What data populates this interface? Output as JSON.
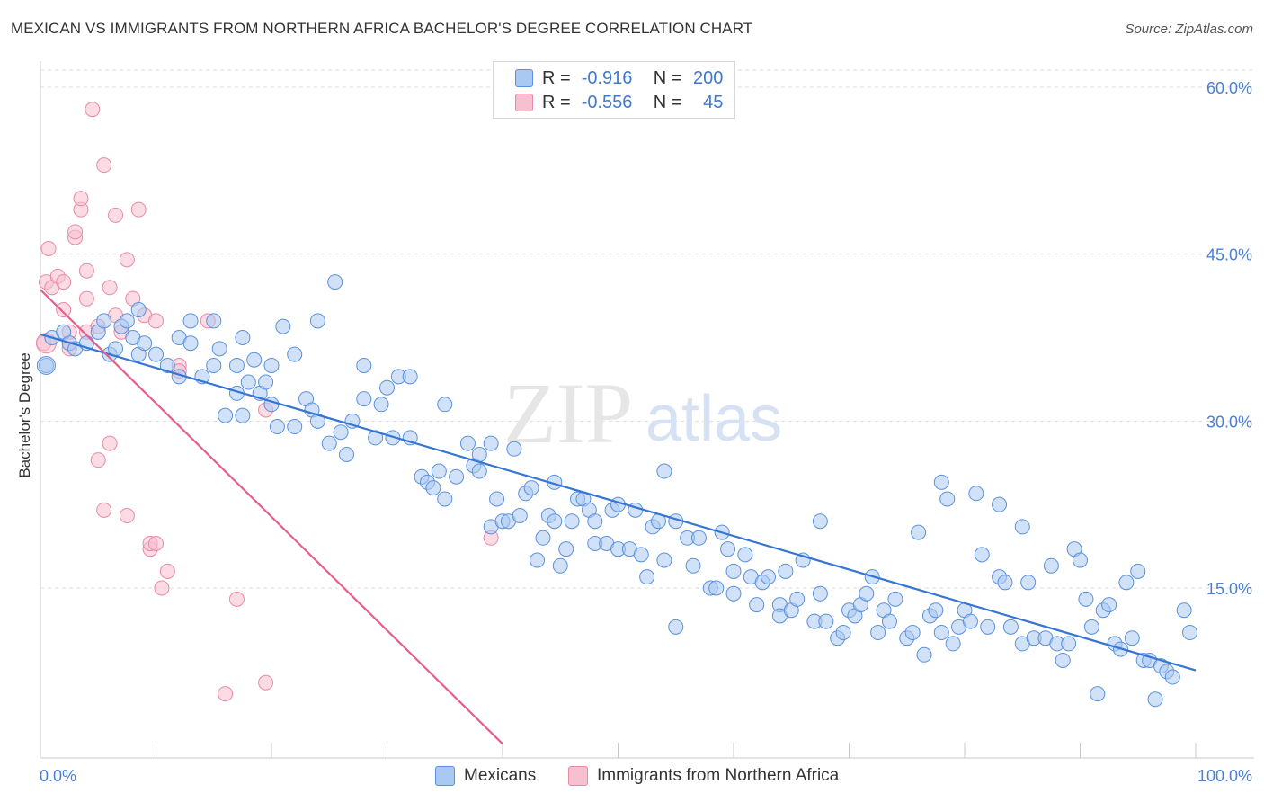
{
  "title": "MEXICAN VS IMMIGRANTS FROM NORTHERN AFRICA BACHELOR'S DEGREE CORRELATION CHART",
  "source": "Source: ZipAtlas.com",
  "watermark": {
    "zip": "ZIP",
    "atlas": "atlas"
  },
  "legend": {
    "row1": {
      "r_label": "R =",
      "r_value": "-0.916",
      "n_label": "N =",
      "n_value": "200"
    },
    "row2": {
      "r_label": "R =",
      "r_value": "-0.556",
      "n_label": "N =",
      "n_value": "45"
    }
  },
  "bottom_legend": {
    "series1": "Mexicans",
    "series2": "Immigrants from Northern Africa"
  },
  "colors": {
    "blue_fill": "#a9c8f2",
    "blue_stroke": "#5b92dd",
    "blue_line": "#3575d3",
    "pink_fill": "#f7c0d0",
    "pink_stroke": "#e88aa6",
    "pink_line": "#e4608a",
    "grid": "#dddddd",
    "axis_text": "#4a7fd4"
  },
  "chart_data": {
    "type": "scatter",
    "title": "MEXICAN VS IMMIGRANTS FROM NORTHERN AFRICA BACHELOR'S DEGREE CORRELATION CHART",
    "xlabel": "",
    "ylabel": "Bachelor's Degree",
    "xlim": [
      0,
      100
    ],
    "ylim": [
      0,
      63
    ],
    "x_tick_labels": [
      "0.0%",
      "100.0%"
    ],
    "y_ticks": [
      15,
      30,
      45,
      60
    ],
    "y_tick_labels": [
      "15.0%",
      "30.0%",
      "45.0%",
      "60.0%"
    ],
    "grid": true,
    "legend_placement": "top-center",
    "series": [
      {
        "name": "Mexicans",
        "color": "#5b92dd",
        "trend": {
          "x": [
            0,
            100
          ],
          "y": [
            37.8,
            7.6
          ]
        },
        "points": [
          [
            0.5,
            35
          ],
          [
            1,
            37.5
          ],
          [
            2,
            38
          ],
          [
            2.5,
            37
          ],
          [
            3,
            36.5
          ],
          [
            4,
            37
          ],
          [
            5,
            38
          ],
          [
            5.5,
            39
          ],
          [
            6,
            36
          ],
          [
            6.5,
            36.5
          ],
          [
            7,
            38.5
          ],
          [
            7.5,
            39
          ],
          [
            8,
            37.5
          ],
          [
            8.5,
            40
          ],
          [
            8.5,
            36
          ],
          [
            9,
            37
          ],
          [
            10,
            36
          ],
          [
            11,
            35
          ],
          [
            12,
            37.5
          ],
          [
            12,
            34
          ],
          [
            13,
            39
          ],
          [
            13,
            37
          ],
          [
            14,
            34
          ],
          [
            15,
            39
          ],
          [
            15,
            35
          ],
          [
            15.5,
            36.5
          ],
          [
            16,
            30.5
          ],
          [
            17,
            35
          ],
          [
            17,
            32.5
          ],
          [
            17.5,
            30.5
          ],
          [
            17.5,
            37.5
          ],
          [
            18,
            33.5
          ],
          [
            18.5,
            35.5
          ],
          [
            19,
            32.5
          ],
          [
            19.5,
            33.5
          ],
          [
            20,
            35
          ],
          [
            20,
            31.5
          ],
          [
            20.5,
            29.5
          ],
          [
            21,
            38.5
          ],
          [
            22,
            36
          ],
          [
            22,
            29.5
          ],
          [
            23,
            32
          ],
          [
            23.5,
            31
          ],
          [
            24,
            30
          ],
          [
            24,
            39
          ],
          [
            25,
            28
          ],
          [
            25.5,
            42.5
          ],
          [
            26,
            29
          ],
          [
            26.5,
            27
          ],
          [
            27,
            30
          ],
          [
            28,
            35
          ],
          [
            28,
            32
          ],
          [
            29,
            28.5
          ],
          [
            29.5,
            31.5
          ],
          [
            30,
            33
          ],
          [
            30.5,
            28.5
          ],
          [
            31,
            34
          ],
          [
            32,
            34
          ],
          [
            32,
            28.5
          ],
          [
            33,
            25
          ],
          [
            33.5,
            24.5
          ],
          [
            34,
            24
          ],
          [
            34.5,
            25.5
          ],
          [
            35,
            23
          ],
          [
            35,
            31.5
          ],
          [
            36,
            25
          ],
          [
            37,
            28
          ],
          [
            37.5,
            26
          ],
          [
            38,
            27
          ],
          [
            38,
            25.5
          ],
          [
            39,
            28
          ],
          [
            39,
            20.5
          ],
          [
            39.5,
            23
          ],
          [
            40,
            21
          ],
          [
            40.5,
            21
          ],
          [
            41,
            27.5
          ],
          [
            41.5,
            21.5
          ],
          [
            42,
            23.5
          ],
          [
            42.5,
            24
          ],
          [
            43,
            17.5
          ],
          [
            43.5,
            19.5
          ],
          [
            44,
            21.5
          ],
          [
            44.5,
            21
          ],
          [
            44.5,
            24.5
          ],
          [
            45,
            17
          ],
          [
            45.5,
            18.5
          ],
          [
            46,
            21
          ],
          [
            46.5,
            23
          ],
          [
            47,
            23
          ],
          [
            47.5,
            22
          ],
          [
            48,
            19
          ],
          [
            48,
            21
          ],
          [
            49,
            19
          ],
          [
            49.5,
            22
          ],
          [
            50,
            18.5
          ],
          [
            50,
            22.5
          ],
          [
            51,
            18.5
          ],
          [
            51.5,
            22
          ],
          [
            52,
            18
          ],
          [
            52.5,
            16
          ],
          [
            53,
            20.5
          ],
          [
            53.5,
            21
          ],
          [
            54,
            17.5
          ],
          [
            54,
            25.5
          ],
          [
            55,
            21
          ],
          [
            55,
            11.5
          ],
          [
            56,
            19.5
          ],
          [
            56.5,
            17
          ],
          [
            57,
            19.5
          ],
          [
            58,
            15
          ],
          [
            58.5,
            15
          ],
          [
            59,
            20
          ],
          [
            59.5,
            18.5
          ],
          [
            60,
            16.5
          ],
          [
            60,
            14.5
          ],
          [
            61,
            18
          ],
          [
            61.5,
            16
          ],
          [
            62,
            13.5
          ],
          [
            62.5,
            15.5
          ],
          [
            63,
            16
          ],
          [
            64,
            13.5
          ],
          [
            64,
            12.5
          ],
          [
            64.5,
            16.5
          ],
          [
            65,
            13
          ],
          [
            65.5,
            14
          ],
          [
            66,
            17.5
          ],
          [
            67,
            12
          ],
          [
            67.5,
            14.5
          ],
          [
            67.5,
            21
          ],
          [
            68,
            12
          ],
          [
            69,
            10.5
          ],
          [
            69.5,
            11
          ],
          [
            70,
            13
          ],
          [
            70.5,
            12.5
          ],
          [
            71,
            13.5
          ],
          [
            71.5,
            14.5
          ],
          [
            72,
            16
          ],
          [
            72.5,
            11
          ],
          [
            73,
            13
          ],
          [
            73.5,
            12
          ],
          [
            74,
            14
          ],
          [
            75,
            10.5
          ],
          [
            75.5,
            11
          ],
          [
            76,
            20
          ],
          [
            76.5,
            9
          ],
          [
            77,
            12.5
          ],
          [
            77.5,
            13
          ],
          [
            78,
            11
          ],
          [
            78,
            24.5
          ],
          [
            78.5,
            23
          ],
          [
            79,
            10
          ],
          [
            79.5,
            11.5
          ],
          [
            80,
            13
          ],
          [
            80.5,
            12
          ],
          [
            81,
            23.5
          ],
          [
            81.5,
            18
          ],
          [
            82,
            11.5
          ],
          [
            83,
            16
          ],
          [
            83,
            22.5
          ],
          [
            83.5,
            15.5
          ],
          [
            84,
            11.5
          ],
          [
            85,
            10
          ],
          [
            85,
            20.5
          ],
          [
            85.5,
            15.5
          ],
          [
            86,
            10.5
          ],
          [
            87,
            10.5
          ],
          [
            87.5,
            17
          ],
          [
            88,
            10
          ],
          [
            88.5,
            8.5
          ],
          [
            89,
            10
          ],
          [
            89.5,
            18.5
          ],
          [
            90,
            17.5
          ],
          [
            90.5,
            14
          ],
          [
            91,
            11.5
          ],
          [
            91.5,
            5.5
          ],
          [
            92,
            13
          ],
          [
            92.5,
            13.5
          ],
          [
            93,
            10
          ],
          [
            93.5,
            9.5
          ],
          [
            94,
            15.5
          ],
          [
            94.5,
            10.5
          ],
          [
            95,
            16.5
          ],
          [
            95.5,
            8.5
          ],
          [
            96,
            8.5
          ],
          [
            96.5,
            5
          ],
          [
            97,
            8
          ],
          [
            97.5,
            7.5
          ],
          [
            98,
            7
          ],
          [
            99,
            13
          ],
          [
            99.5,
            11
          ]
        ]
      },
      {
        "name": "Immigrants from Northern Africa",
        "color": "#e88aa6",
        "trend": {
          "x": [
            0,
            40
          ],
          "y": [
            41.8,
            1
          ]
        },
        "points": [
          [
            0.3,
            37
          ],
          [
            0.5,
            42.5
          ],
          [
            0.7,
            45.5
          ],
          [
            1,
            42
          ],
          [
            1.5,
            43
          ],
          [
            2,
            40
          ],
          [
            2,
            42.5
          ],
          [
            2.5,
            38
          ],
          [
            2.5,
            36.5
          ],
          [
            3,
            46.5
          ],
          [
            3,
            47
          ],
          [
            3.5,
            49
          ],
          [
            3.5,
            50
          ],
          [
            4,
            38
          ],
          [
            4,
            41
          ],
          [
            4,
            43.5
          ],
          [
            4.5,
            58
          ],
          [
            5,
            38.5
          ],
          [
            5,
            26.5
          ],
          [
            5.5,
            53
          ],
          [
            5.5,
            22
          ],
          [
            6,
            42
          ],
          [
            6,
            28
          ],
          [
            6.5,
            48.5
          ],
          [
            6.5,
            39.5
          ],
          [
            7,
            38
          ],
          [
            7.5,
            44.5
          ],
          [
            7.5,
            21.5
          ],
          [
            8,
            41
          ],
          [
            8.5,
            49
          ],
          [
            9,
            39.5
          ],
          [
            9.5,
            18.5
          ],
          [
            9.5,
            19
          ],
          [
            10,
            19
          ],
          [
            10,
            39
          ],
          [
            10.5,
            15
          ],
          [
            11,
            16.5
          ],
          [
            12,
            35
          ],
          [
            12,
            34.5
          ],
          [
            14.5,
            39
          ],
          [
            16,
            5.5
          ],
          [
            17,
            14
          ],
          [
            19.5,
            6.5
          ],
          [
            19.5,
            31
          ],
          [
            39,
            19.5
          ]
        ]
      }
    ]
  }
}
